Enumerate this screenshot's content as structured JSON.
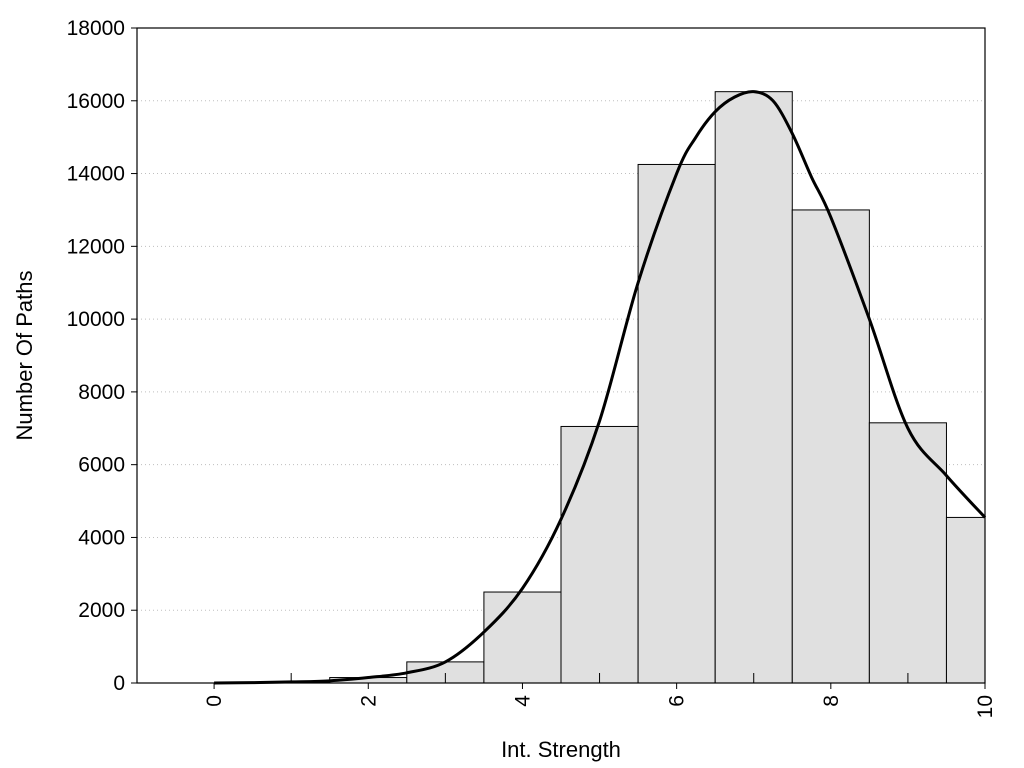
{
  "chart_data": {
    "type": "bar",
    "title": "",
    "xlabel": "Int. Strength",
    "ylabel": "Number Of Paths",
    "xlim": [
      -1,
      10
    ],
    "ylim": [
      0,
      18000
    ],
    "grid": "horizontal dotted",
    "x_ticks": [
      "0",
      "2",
      "4",
      "6",
      "8",
      "10"
    ],
    "x_tick_values": [
      0,
      2,
      4,
      6,
      8,
      10
    ],
    "y_ticks": [
      "0",
      "2000",
      "4000",
      "6000",
      "8000",
      "10000",
      "12000",
      "14000",
      "16000",
      "18000"
    ],
    "y_tick_values": [
      0,
      2000,
      4000,
      6000,
      8000,
      10000,
      12000,
      14000,
      16000,
      18000
    ],
    "bins": [
      {
        "center": 0,
        "value": 0
      },
      {
        "center": 1,
        "value": 15
      },
      {
        "center": 2,
        "value": 150
      },
      {
        "center": 3,
        "value": 580
      },
      {
        "center": 4,
        "value": 2500
      },
      {
        "center": 5,
        "value": 7050
      },
      {
        "center": 6,
        "value": 14250
      },
      {
        "center": 7,
        "value": 16250
      },
      {
        "center": 8,
        "value": 13000
      },
      {
        "center": 9,
        "value": 7150
      },
      {
        "center": 10,
        "value": 4550
      }
    ],
    "curve": {
      "x": [
        0,
        0.5,
        1,
        1.5,
        2,
        2.5,
        3,
        3.5,
        4,
        4.5,
        5,
        5.5,
        6,
        6.25,
        6.5,
        6.75,
        7,
        7.25,
        7.5,
        7.75,
        8,
        8.5,
        9,
        9.5,
        10
      ],
      "y": [
        0,
        10,
        30,
        60,
        150,
        280,
        580,
        1400,
        2600,
        4500,
        7200,
        11000,
        14000,
        15000,
        15700,
        16100,
        16250,
        16000,
        15100,
        13900,
        12800,
        10000,
        7000,
        5700,
        4550
      ]
    },
    "colors": {
      "bar_fill": "#e0e0e0",
      "bar_stroke": "#000000",
      "curve": "#000000",
      "grid": "#bfbfbf"
    }
  }
}
